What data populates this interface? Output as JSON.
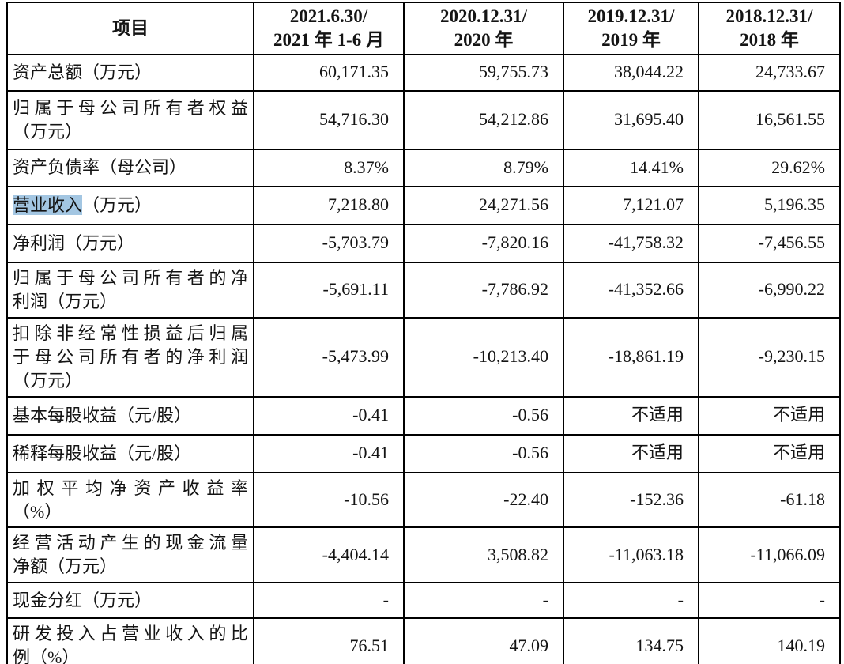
{
  "table": {
    "columns": [
      "项目",
      "2021.6.30/\n2021 年 1-6 月",
      "2020.12.31/\n2020 年",
      "2019.12.31/\n2019 年",
      "2018.12.31/\n2018 年"
    ],
    "rows": [
      {
        "label": "资产总额（万元）",
        "values": [
          "60,171.35",
          "59,755.73",
          "38,044.22",
          "24,733.67"
        ]
      },
      {
        "label": "归属于母公司所有者权益（万元）",
        "label_lines": [
          "归属于母公司所有者权益",
          "（万元）"
        ],
        "values": [
          "54,716.30",
          "54,212.86",
          "31,695.40",
          "16,561.55"
        ]
      },
      {
        "label": "资产负债率（母公司）",
        "values": [
          "8.37%",
          "8.79%",
          "14.41%",
          "29.62%"
        ]
      },
      {
        "label_highlight": "营业收入",
        "label_rest": "（万元）",
        "values": [
          "7,218.80",
          "24,271.56",
          "7,121.07",
          "5,196.35"
        ]
      },
      {
        "label": "净利润（万元）",
        "values": [
          "-5,703.79",
          "-7,820.16",
          "-41,758.32",
          "-7,456.55"
        ]
      },
      {
        "label": "归属于母公司所有者的净利润（万元）",
        "label_lines": [
          "归属于母公司所有者的净",
          "利润（万元）"
        ],
        "values": [
          "-5,691.11",
          "-7,786.92",
          "-41,352.66",
          "-6,990.22"
        ]
      },
      {
        "label": "扣除非经常性损益后归属于母公司所有者的净利润（万元）",
        "label_lines": [
          "扣除非经常性损益后归属",
          "于母公司所有者的净利润",
          "（万元）"
        ],
        "values": [
          "-5,473.99",
          "-10,213.40",
          "-18,861.19",
          "-9,230.15"
        ]
      },
      {
        "label": "基本每股收益（元/股）",
        "values": [
          "-0.41",
          "-0.56",
          "不适用",
          "不适用"
        ]
      },
      {
        "label": "稀释每股收益（元/股）",
        "values": [
          "-0.41",
          "-0.56",
          "不适用",
          "不适用"
        ]
      },
      {
        "label": "加权平均净资产收益率（%）",
        "label_lines": [
          "加权平均净资产收益率",
          "（%）"
        ],
        "values": [
          "-10.56",
          "-22.40",
          "-152.36",
          "-61.18"
        ]
      },
      {
        "label": "经营活动产生的现金流量净额（万元）",
        "label_lines": [
          "经营活动产生的现金流量",
          "净额（万元）"
        ],
        "values": [
          "-4,404.14",
          "3,508.82",
          "-11,063.18",
          "-11,066.09"
        ]
      },
      {
        "label": "现金分红（万元）",
        "values": [
          "-",
          "-",
          "-",
          "-"
        ]
      },
      {
        "label": "研发投入占营业收入的比例（%）",
        "label_lines": [
          "研发投入占营业收入的比",
          "例（%）"
        ],
        "values": [
          "76.51",
          "47.09",
          "134.75",
          "140.19"
        ]
      }
    ],
    "highlight_color": "#a3c6e2"
  }
}
